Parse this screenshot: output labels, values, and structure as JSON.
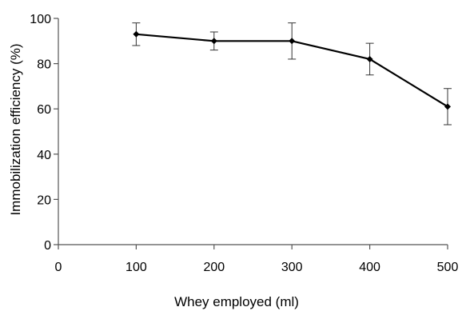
{
  "chart_data": {
    "type": "line",
    "title": "",
    "xlabel": "Whey employed (ml)",
    "ylabel": "Immobilization efficiency (%)",
    "xlim": [
      0,
      500
    ],
    "ylim": [
      0,
      100
    ],
    "xticks": [
      0,
      100,
      200,
      300,
      400,
      500
    ],
    "yticks": [
      0,
      20,
      40,
      60,
      80,
      100
    ],
    "grid": false,
    "legend": "none",
    "series": [
      {
        "x": [
          100,
          200,
          300,
          400,
          500
        ],
        "y": [
          93,
          90,
          90,
          82,
          61
        ],
        "y_upper": [
          98,
          94,
          98,
          89,
          69
        ],
        "y_lower": [
          88,
          86,
          82,
          75,
          53
        ],
        "marker": "diamond",
        "color": "#000000"
      }
    ]
  }
}
